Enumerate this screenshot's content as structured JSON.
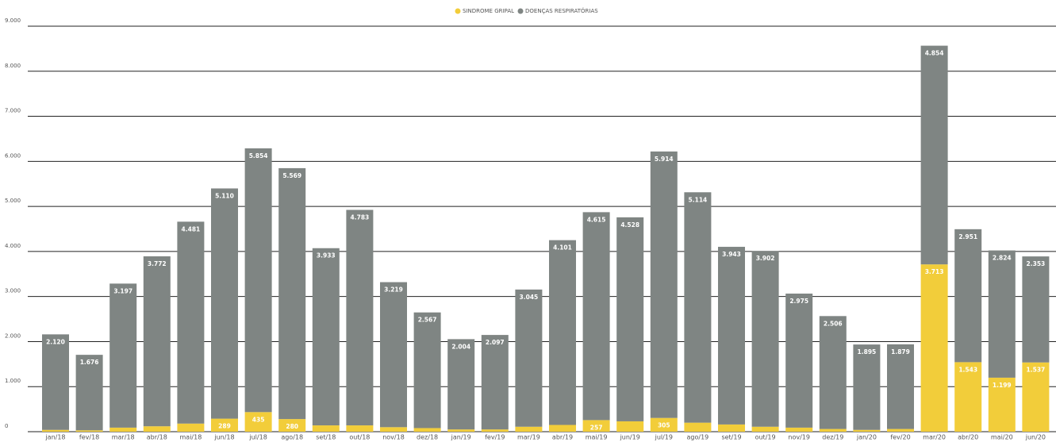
{
  "chart_data": {
    "type": "stacked-bar",
    "categories": [
      "jan/18",
      "fev/18",
      "mar/18",
      "abr/18",
      "mai/18",
      "jun/18",
      "jul/18",
      "ago/18",
      "set/18",
      "out/18",
      "nov/18",
      "dez/18",
      "jan/19",
      "fev/19",
      "mar/19",
      "abr/19",
      "mai/19",
      "jun/19",
      "jul/19",
      "ago/19",
      "set/19",
      "out/19",
      "nov/19",
      "dez/19",
      "jan/20",
      "fev/20",
      "mar/20",
      "abr/20",
      "mai/20",
      "jun/20"
    ],
    "series": [
      {
        "name": "SINDROME GRIPAL",
        "color": "#f2cd3a",
        "values": [
          40,
          30,
          90,
          120,
          180,
          289,
          435,
          280,
          140,
          140,
          100,
          80,
          50,
          50,
          110,
          150,
          257,
          230,
          305,
          200,
          160,
          110,
          90,
          60,
          40,
          60,
          3713,
          1543,
          1199,
          1537
        ],
        "value_labels": [
          null,
          null,
          null,
          null,
          null,
          "289",
          "435",
          "280",
          null,
          null,
          null,
          null,
          null,
          null,
          null,
          null,
          "257",
          null,
          "305",
          null,
          null,
          null,
          null,
          null,
          null,
          null,
          "3.713",
          "1.543",
          "1.199",
          "1.537"
        ]
      },
      {
        "name": "DOENÇAS RESPIRATÓRIAS",
        "color": "#7f8583",
        "values": [
          2120,
          1676,
          3197,
          3772,
          4481,
          5110,
          5854,
          5569,
          3933,
          4783,
          3219,
          2567,
          2004,
          2097,
          3045,
          4101,
          4615,
          4528,
          5914,
          5114,
          3943,
          3902,
          2975,
          2506,
          1895,
          1879,
          4854,
          2951,
          2824,
          2353
        ],
        "value_labels": [
          "2.120",
          "1.676",
          "3.197",
          "3.772",
          "4.481",
          "5.110",
          "5.854",
          "5.569",
          "3.933",
          "4.783",
          "3.219",
          "2.567",
          "2.004",
          "2.097",
          "3.045",
          "4.101",
          "4.615",
          "4.528",
          "5.914",
          "5.114",
          "3.943",
          "3.902",
          "2.975",
          "2.506",
          "1.895",
          "1.879",
          "4.854",
          "2.951",
          "2.824",
          "2.353"
        ]
      }
    ],
    "ylim": [
      0,
      9000
    ],
    "yticks": [
      0,
      {
        "value": 1000,
        "label": "1.000"
      },
      {
        "value": 2000,
        "label": "2.000"
      },
      {
        "value": 3000,
        "label": "3.000"
      },
      {
        "value": 4000,
        "label": "4.000"
      },
      {
        "value": 5000,
        "label": "5.000"
      },
      {
        "value": 6000,
        "label": "6.000"
      },
      {
        "value": 7000,
        "label": "7.000"
      },
      {
        "value": 8000,
        "label": "8.000"
      },
      {
        "value": 9000,
        "label": "9.000"
      }
    ],
    "grid": true,
    "legend": "top"
  }
}
